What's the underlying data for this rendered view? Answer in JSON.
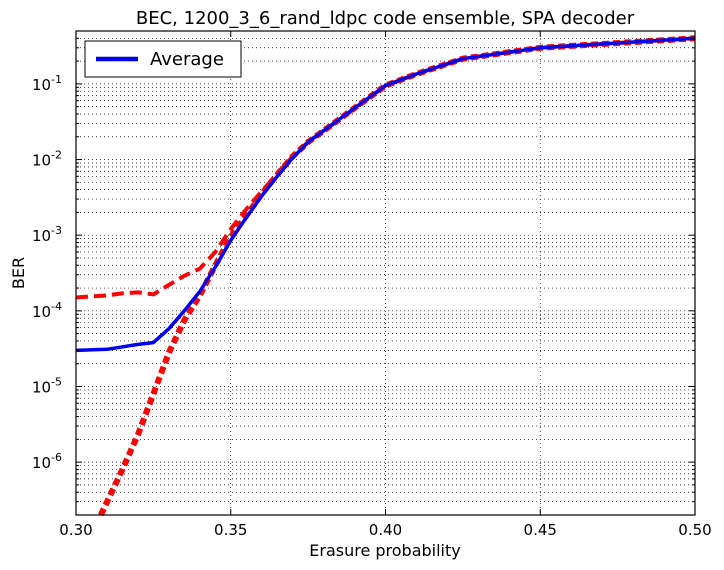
{
  "chart_data": {
    "type": "line",
    "title": "BEC, 1200_3_6_rand_ldpc code ensemble, SPA decoder",
    "xlabel": "Erasure probability",
    "ylabel": "BER",
    "xlim": [
      0.3,
      0.5
    ],
    "ylim": [
      2e-07,
      0.5
    ],
    "yscale": "log",
    "grid": true,
    "legend_position": "upper-left",
    "x_ticks": [
      "0.30",
      "0.35",
      "0.40",
      "0.45",
      "0.50"
    ],
    "y_ticks": [
      {
        "base": "10",
        "exp": "-6",
        "value": 1e-06
      },
      {
        "base": "10",
        "exp": "-5",
        "value": 1e-05
      },
      {
        "base": "10",
        "exp": "-4",
        "value": 0.0001
      },
      {
        "base": "10",
        "exp": "-3",
        "value": 0.001
      },
      {
        "base": "10",
        "exp": "-2",
        "value": 0.01
      },
      {
        "base": "10",
        "exp": "-1",
        "value": 0.1
      }
    ],
    "series": [
      {
        "name": "Average",
        "color": "#0000ee",
        "style": "solid",
        "in_legend": true,
        "x": [
          0.3,
          0.31,
          0.32,
          0.325,
          0.33,
          0.335,
          0.34,
          0.345,
          0.35,
          0.355,
          0.36,
          0.365,
          0.37,
          0.375,
          0.38,
          0.39,
          0.4,
          0.41,
          0.425,
          0.45,
          0.5
        ],
        "y": [
          3e-05,
          3.1e-05,
          3.6e-05,
          3.8e-05,
          5.8e-05,
          0.0001,
          0.00018,
          0.00038,
          0.00085,
          0.0017,
          0.0033,
          0.006,
          0.0105,
          0.017,
          0.024,
          0.048,
          0.095,
          0.135,
          0.215,
          0.3,
          0.4
        ]
      },
      {
        "color": "#ff0000",
        "style": "dashed",
        "in_legend": false,
        "x": [
          0.3,
          0.305,
          0.31,
          0.315,
          0.32,
          0.325,
          0.33,
          0.335,
          0.34,
          0.345,
          0.35,
          0.355,
          0.36,
          0.365,
          0.37,
          0.375,
          0.38,
          0.39,
          0.4,
          0.41,
          0.425,
          0.45,
          0.5
        ],
        "y": [
          0.00015,
          0.000155,
          0.00016,
          0.00017,
          0.000175,
          0.000165,
          0.00022,
          0.00029,
          0.00036,
          0.0006,
          0.0012,
          0.0022,
          0.0038,
          0.0065,
          0.011,
          0.017,
          0.024,
          0.047,
          0.095,
          0.135,
          0.215,
          0.3,
          0.4
        ]
      },
      {
        "color": "#ff0000",
        "style": "dotted",
        "in_legend": false,
        "x": [
          0.308,
          0.315,
          0.32,
          0.325,
          0.33,
          0.335,
          0.34,
          0.345,
          0.35,
          0.355,
          0.36,
          0.365,
          0.37,
          0.375,
          0.38,
          0.39,
          0.4,
          0.41,
          0.425,
          0.45,
          0.5
        ],
        "y": [
          2e-07,
          8e-07,
          2.3e-06,
          8e-06,
          2.8e-05,
          7.5e-05,
          0.00016,
          0.0004,
          0.00095,
          0.0018,
          0.0035,
          0.0063,
          0.011,
          0.017,
          0.024,
          0.048,
          0.095,
          0.135,
          0.215,
          0.3,
          0.4
        ]
      }
    ]
  }
}
